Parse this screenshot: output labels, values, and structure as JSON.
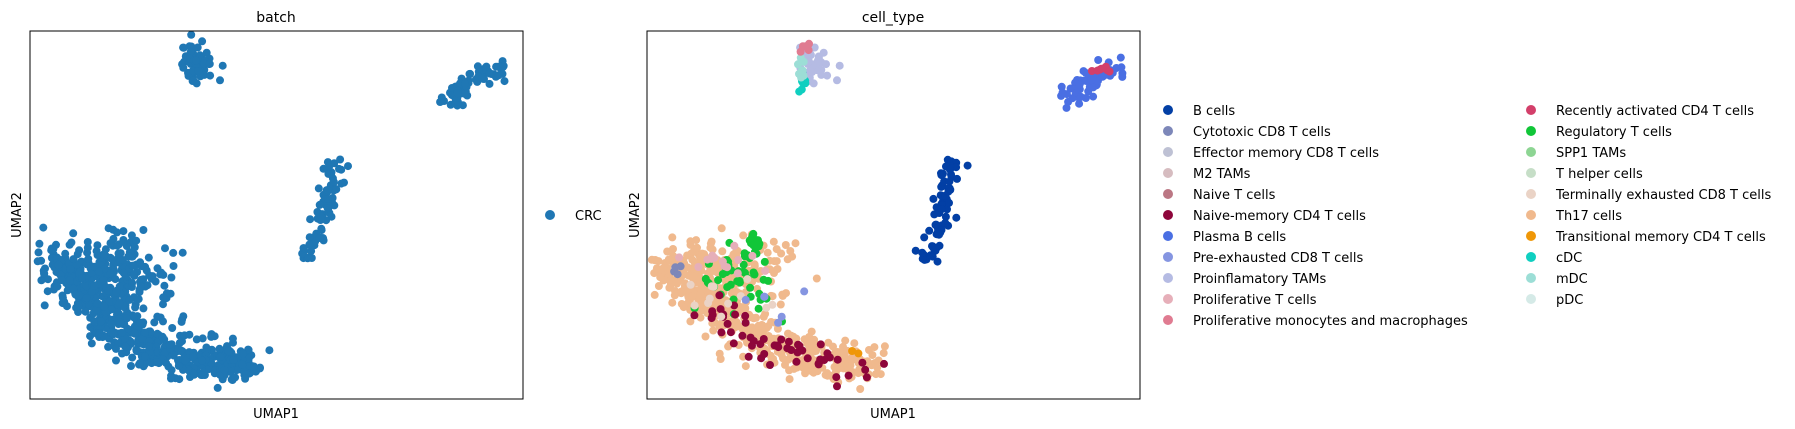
{
  "chart_data": [
    {
      "type": "scatter",
      "title": "batch",
      "xlabel": "UMAP1",
      "ylabel": "UMAP2",
      "axis_ticks": false,
      "grid": false,
      "legend_position": "right",
      "legend": [
        {
          "name": "CRC",
          "color": "#1f77b4"
        }
      ],
      "xlim": [
        0,
        10
      ],
      "ylim": [
        0,
        10
      ],
      "clusters": [
        {
          "label": "CRC",
          "color": "#1f77b4",
          "type": "blob",
          "cx": 3.35,
          "cy": 9.15,
          "rx": 0.32,
          "ry": 0.5,
          "n": 60
        },
        {
          "label": "CRC",
          "color": "#1f77b4",
          "type": "path",
          "pts": [
            [
              8.5,
              8.1
            ],
            [
              8.9,
              8.6
            ],
            [
              9.3,
              8.9
            ],
            [
              9.65,
              9.05
            ]
          ],
          "w": 0.25,
          "n": 70
        },
        {
          "label": "CRC",
          "color": "#1f77b4",
          "type": "path",
          "pts": [
            [
              5.7,
              3.8
            ],
            [
              5.95,
              4.8
            ],
            [
              6.05,
              5.7
            ],
            [
              6.25,
              6.4
            ]
          ],
          "w": 0.22,
          "n": 75
        },
        {
          "label": "CRC",
          "color": "#1f77b4",
          "type": "path",
          "pts": [
            [
              0.55,
              3.8
            ],
            [
              1.2,
              2.6
            ],
            [
              2.2,
              1.6
            ],
            [
              3.3,
              1.05
            ],
            [
              4.6,
              0.9
            ]
          ],
          "w": 0.55,
          "n": 520
        },
        {
          "label": "CRC",
          "color": "#1f77b4",
          "type": "blob",
          "cx": 1.7,
          "cy": 3.4,
          "rx": 1.1,
          "ry": 1.1,
          "n": 220
        }
      ]
    },
    {
      "type": "scatter",
      "title": "cell_type",
      "xlabel": "UMAP1",
      "ylabel": "UMAP2",
      "axis_ticks": false,
      "grid": false,
      "legend_position": "right",
      "legend": [
        {
          "name": "B cells",
          "color": "#023fa5"
        },
        {
          "name": "Cytotoxic CD8 T cells",
          "color": "#7d87b9"
        },
        {
          "name": "Effector memory CD8 T cells",
          "color": "#bec1d4"
        },
        {
          "name": "M2 TAMs",
          "color": "#d6bcc0"
        },
        {
          "name": "Naive T cells",
          "color": "#bb7784"
        },
        {
          "name": "Naive-memory CD4 T cells",
          "color": "#8e063b"
        },
        {
          "name": "Plasma B cells",
          "color": "#4a6fe3"
        },
        {
          "name": "Pre-exhausted CD8 T cells",
          "color": "#8595e1"
        },
        {
          "name": "Proinflamatory TAMs",
          "color": "#b5bbe3"
        },
        {
          "name": "Proliferative T cells",
          "color": "#e6afb9"
        },
        {
          "name": "Proliferative monocytes and macrophages",
          "color": "#e07b91"
        },
        {
          "name": "Recently activated CD4 T cells",
          "color": "#d33f6a"
        },
        {
          "name": "Regulatory T cells",
          "color": "#11c638"
        },
        {
          "name": "SPP1 TAMs",
          "color": "#8dd593"
        },
        {
          "name": "T helper cells",
          "color": "#c6dec7"
        },
        {
          "name": "Terminally exhausted CD8 T cells",
          "color": "#ead3c6"
        },
        {
          "name": "Th17 cells",
          "color": "#f0b98d"
        },
        {
          "name": "Transitional memory CD4 T cells",
          "color": "#ef9708"
        },
        {
          "name": "cDC",
          "color": "#0fcfc0"
        },
        {
          "name": "mDC",
          "color": "#9cded6"
        },
        {
          "name": "pDC",
          "color": "#d5eae7"
        }
      ],
      "xlim": [
        0,
        10
      ],
      "ylim": [
        0,
        10
      ],
      "clusters": [
        {
          "label": "Proinflamatory TAMs",
          "color": "#b5bbe3",
          "type": "blob",
          "cx": 3.35,
          "cy": 9.15,
          "rx": 0.32,
          "ry": 0.5,
          "n": 45
        },
        {
          "label": "cDC",
          "color": "#0fcfc0",
          "type": "blob",
          "cx": 3.1,
          "cy": 8.6,
          "rx": 0.12,
          "ry": 0.25,
          "n": 10
        },
        {
          "label": "mDC",
          "color": "#9cded6",
          "type": "blob",
          "cx": 3.15,
          "cy": 8.9,
          "rx": 0.12,
          "ry": 0.25,
          "n": 8
        },
        {
          "label": "Proliferative monocytes and macrophages",
          "color": "#e07b91",
          "type": "blob",
          "cx": 3.2,
          "cy": 9.55,
          "rx": 0.15,
          "ry": 0.1,
          "n": 5
        },
        {
          "label": "Plasma B cells",
          "color": "#4a6fe3",
          "type": "path",
          "pts": [
            [
              8.5,
              8.1
            ],
            [
              8.9,
              8.6
            ],
            [
              9.3,
              8.9
            ],
            [
              9.65,
              9.05
            ]
          ],
          "w": 0.25,
          "n": 65
        },
        {
          "label": "Recently activated CD4 T cells",
          "color": "#d33f6a",
          "type": "blob",
          "cx": 9.25,
          "cy": 8.95,
          "rx": 0.35,
          "ry": 0.15,
          "n": 8
        },
        {
          "label": "B cells",
          "color": "#023fa5",
          "type": "path",
          "pts": [
            [
              5.7,
              3.8
            ],
            [
              5.95,
              4.8
            ],
            [
              6.05,
              5.7
            ],
            [
              6.25,
              6.4
            ]
          ],
          "w": 0.22,
          "n": 75
        },
        {
          "label": "Th17 cells",
          "color": "#f0b98d",
          "type": "path",
          "pts": [
            [
              0.55,
              3.8
            ],
            [
              1.2,
              2.6
            ],
            [
              2.2,
              1.6
            ],
            [
              3.3,
              1.05
            ],
            [
              4.6,
              0.9
            ]
          ],
          "w": 0.55,
          "n": 430
        },
        {
          "label": "Th17 cells",
          "color": "#f0b98d",
          "type": "blob",
          "cx": 1.7,
          "cy": 3.4,
          "rx": 1.1,
          "ry": 1.1,
          "n": 170
        },
        {
          "label": "Regulatory T cells",
          "color": "#11c638",
          "type": "blob",
          "cx": 1.9,
          "cy": 3.3,
          "rx": 1.1,
          "ry": 1.0,
          "n": 45
        },
        {
          "label": "Regulatory T cells",
          "color": "#11c638",
          "type": "blob",
          "cx": 2.15,
          "cy": 4.3,
          "rx": 0.2,
          "ry": 0.3,
          "n": 15
        },
        {
          "label": "Naive-memory CD4 T cells",
          "color": "#8e063b",
          "type": "path",
          "pts": [
            [
              1.2,
              2.6
            ],
            [
              2.2,
              1.6
            ],
            [
              3.3,
              1.05
            ],
            [
              4.6,
              0.9
            ]
          ],
          "w": 0.5,
          "n": 55
        },
        {
          "label": "Proliferative T cells",
          "color": "#e6afb9",
          "type": "blob",
          "cx": 1.5,
          "cy": 3.9,
          "rx": 0.7,
          "ry": 0.4,
          "n": 14
        },
        {
          "label": "Terminally exhausted CD8 T cells",
          "color": "#ead3c6",
          "type": "blob",
          "cx": 1.6,
          "cy": 3.0,
          "rx": 0.9,
          "ry": 0.9,
          "n": 12
        },
        {
          "label": "Pre-exhausted CD8 T cells",
          "color": "#8595e1",
          "type": "blob",
          "cx": 2.3,
          "cy": 2.6,
          "rx": 0.9,
          "ry": 0.8,
          "n": 6
        },
        {
          "label": "Cytotoxic CD8 T cells",
          "color": "#7d87b9",
          "type": "blob",
          "cx": 0.6,
          "cy": 3.5,
          "rx": 0.15,
          "ry": 0.2,
          "n": 4
        },
        {
          "label": "Transitional memory CD4 T cells",
          "color": "#ef9708",
          "type": "blob",
          "cx": 4.2,
          "cy": 1.3,
          "rx": 0.1,
          "ry": 0.1,
          "n": 2
        }
      ]
    }
  ]
}
